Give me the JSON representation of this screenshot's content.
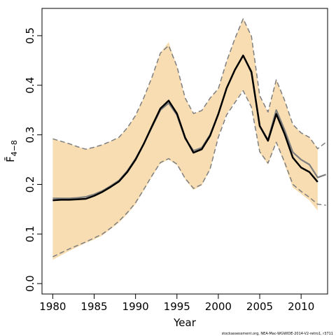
{
  "chart_data": {
    "type": "line",
    "xlabel": "Year",
    "ylabel": "F̄",
    "ylabel_subscript": "4−8",
    "source": "stockassessment.org, NEA-Mac-WGWIDE-2014-V2-retro1, r3711",
    "xlim": [
      1978.7,
      2013.2
    ],
    "ylim": [
      -0.021,
      0.555
    ],
    "xticks": [
      1980,
      1985,
      1990,
      1995,
      2000,
      2005,
      2010
    ],
    "yticks": [
      {
        "value": 0,
        "label": "0.0"
      },
      0.1,
      0.2,
      0.3,
      0.4,
      0.5
    ],
    "x": [
      1980,
      1981,
      1982,
      1983,
      1984,
      1985,
      1986,
      1987,
      1988,
      1989,
      1990,
      1991,
      1992,
      1993,
      1994,
      1995,
      1996,
      1997,
      1998,
      1999,
      2000,
      2001,
      2002,
      2003,
      2004,
      2005,
      2006,
      2007,
      2008,
      2009,
      2010,
      2011,
      2012,
      2013
    ],
    "band": {
      "color": "#f7ddb1",
      "upper": [
        0.292,
        0.287,
        0.282,
        0.276,
        0.271,
        0.275,
        0.28,
        0.287,
        0.295,
        0.314,
        0.339,
        0.375,
        0.417,
        0.465,
        0.487,
        0.438,
        0.374,
        0.343,
        0.349,
        0.374,
        0.393,
        0.448,
        0.494,
        0.534,
        0.499,
        0.379,
        0.346,
        0.411,
        0.37,
        0.321,
        0.304,
        0.295,
        0.273,
        null
      ],
      "lower": [
        0.048,
        0.057,
        0.066,
        0.074,
        0.082,
        0.089,
        0.097,
        0.11,
        0.123,
        0.14,
        0.16,
        0.188,
        0.216,
        0.242,
        0.25,
        0.239,
        0.21,
        0.189,
        0.198,
        0.229,
        0.297,
        0.342,
        0.367,
        0.391,
        0.356,
        0.264,
        0.24,
        0.285,
        0.24,
        0.194,
        0.181,
        0.168,
        0.147,
        null
      ]
    },
    "series": [
      {
        "color": "#7f7f7f",
        "width": 1.5,
        "dashed": true,
        "values": [
          0.292,
          0.287,
          0.282,
          0.276,
          0.271,
          0.275,
          0.28,
          0.287,
          0.295,
          0.314,
          0.339,
          0.375,
          0.417,
          0.465,
          0.48,
          0.438,
          0.374,
          0.343,
          0.349,
          0.374,
          0.393,
          0.448,
          0.494,
          0.534,
          0.499,
          0.379,
          0.346,
          0.411,
          0.37,
          0.321,
          0.304,
          0.295,
          0.272,
          0.285
        ]
      },
      {
        "color": "#7f7f7f",
        "width": 1.5,
        "dashed": true,
        "values": [
          0.054,
          0.062,
          0.07,
          0.077,
          0.084,
          0.092,
          0.1,
          0.112,
          0.126,
          0.143,
          0.163,
          0.19,
          0.218,
          0.244,
          0.252,
          0.241,
          0.212,
          0.192,
          0.2,
          0.231,
          0.295,
          0.34,
          0.365,
          0.389,
          0.356,
          0.266,
          0.243,
          0.285,
          0.245,
          0.2,
          0.186,
          0.174,
          0.16,
          0.158
        ]
      },
      {
        "color": "#7f7f7f",
        "width": 2.2,
        "dashed": false,
        "values": [
          0.172,
          0.172,
          0.172,
          0.173,
          0.175,
          0.18,
          0.187,
          0.197,
          0.208,
          0.227,
          0.252,
          0.282,
          0.316,
          0.35,
          0.364,
          0.34,
          0.292,
          0.268,
          0.274,
          0.3,
          0.342,
          0.394,
          0.431,
          0.46,
          0.425,
          0.318,
          0.29,
          0.35,
          0.31,
          0.265,
          0.25,
          0.24,
          0.214,
          0.22
        ]
      },
      {
        "color": "#000000",
        "width": 2.5,
        "dashed": false,
        "values": [
          0.168,
          0.169,
          0.169,
          0.17,
          0.171,
          0.177,
          0.185,
          0.195,
          0.206,
          0.225,
          0.25,
          0.282,
          0.318,
          0.353,
          0.369,
          0.343,
          0.294,
          0.264,
          0.271,
          0.298,
          0.342,
          0.394,
          0.431,
          0.46,
          0.427,
          0.318,
          0.288,
          0.342,
          0.302,
          0.254,
          0.234,
          0.225,
          0.205,
          null
        ]
      }
    ]
  }
}
